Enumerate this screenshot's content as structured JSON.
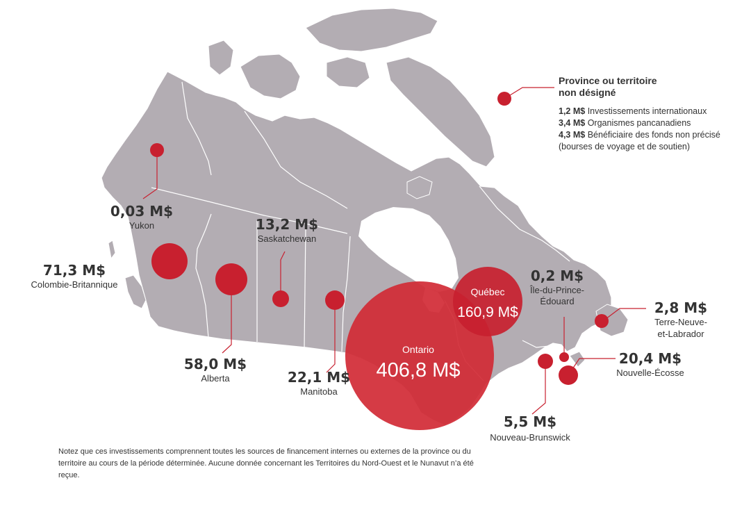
{
  "colors": {
    "land": "#b3adb3",
    "land_border": "#ffffff",
    "water": "#ffffff",
    "bubble": "#c8202f",
    "bubble_large": "#d12a35",
    "text": "#333333"
  },
  "provinces": [
    {
      "key": "yukon",
      "amount": "0,03 M$",
      "name": "Yukon"
    },
    {
      "key": "bc",
      "amount": "71,3 M$",
      "name": "Colombie-Britannique"
    },
    {
      "key": "alberta",
      "amount": "58,0 M$",
      "name": "Alberta"
    },
    {
      "key": "saskatchewan",
      "amount": "13,2 M$",
      "name": "Saskatchewan"
    },
    {
      "key": "manitoba",
      "amount": "22,1 M$",
      "name": "Manitoba"
    },
    {
      "key": "ontario",
      "amount": "406,8 M$",
      "name": "Ontario"
    },
    {
      "key": "quebec",
      "amount": "160,9 M$",
      "name": "Québec"
    },
    {
      "key": "pei",
      "amount": "0,2 M$",
      "name_line1": "Île-du-Prince-",
      "name_line2": "Édouard"
    },
    {
      "key": "nl",
      "amount": "2,8 M$",
      "name_line1": "Terre-Neuve-",
      "name_line2": "et-Labrador"
    },
    {
      "key": "ns",
      "amount": "20,4 M$",
      "name": "Nouvelle-Écosse"
    },
    {
      "key": "nb",
      "amount": "5,5 M$",
      "name": "Nouveau-Brunswick"
    }
  ],
  "unassigned": {
    "title": "Province ou territoire non désigné",
    "items": [
      {
        "amount": "1,2 M$",
        "text": "Investissements internationaux"
      },
      {
        "amount": "3,4 M$",
        "text": "Organismes pancanadiens"
      },
      {
        "amount": "4,3 M$",
        "text": "Bénéficiaire des fonds non précisé (bourses de voyage et de soutien)"
      }
    ]
  },
  "footnote": "Notez que ces investissements comprennent toutes les sources de financement internes ou externes de la province ou du territoire au cours de la période déterminée. Aucune donnée concernant les Territoires du Nord-Ouest et le Nunavut n’a été reçue."
}
